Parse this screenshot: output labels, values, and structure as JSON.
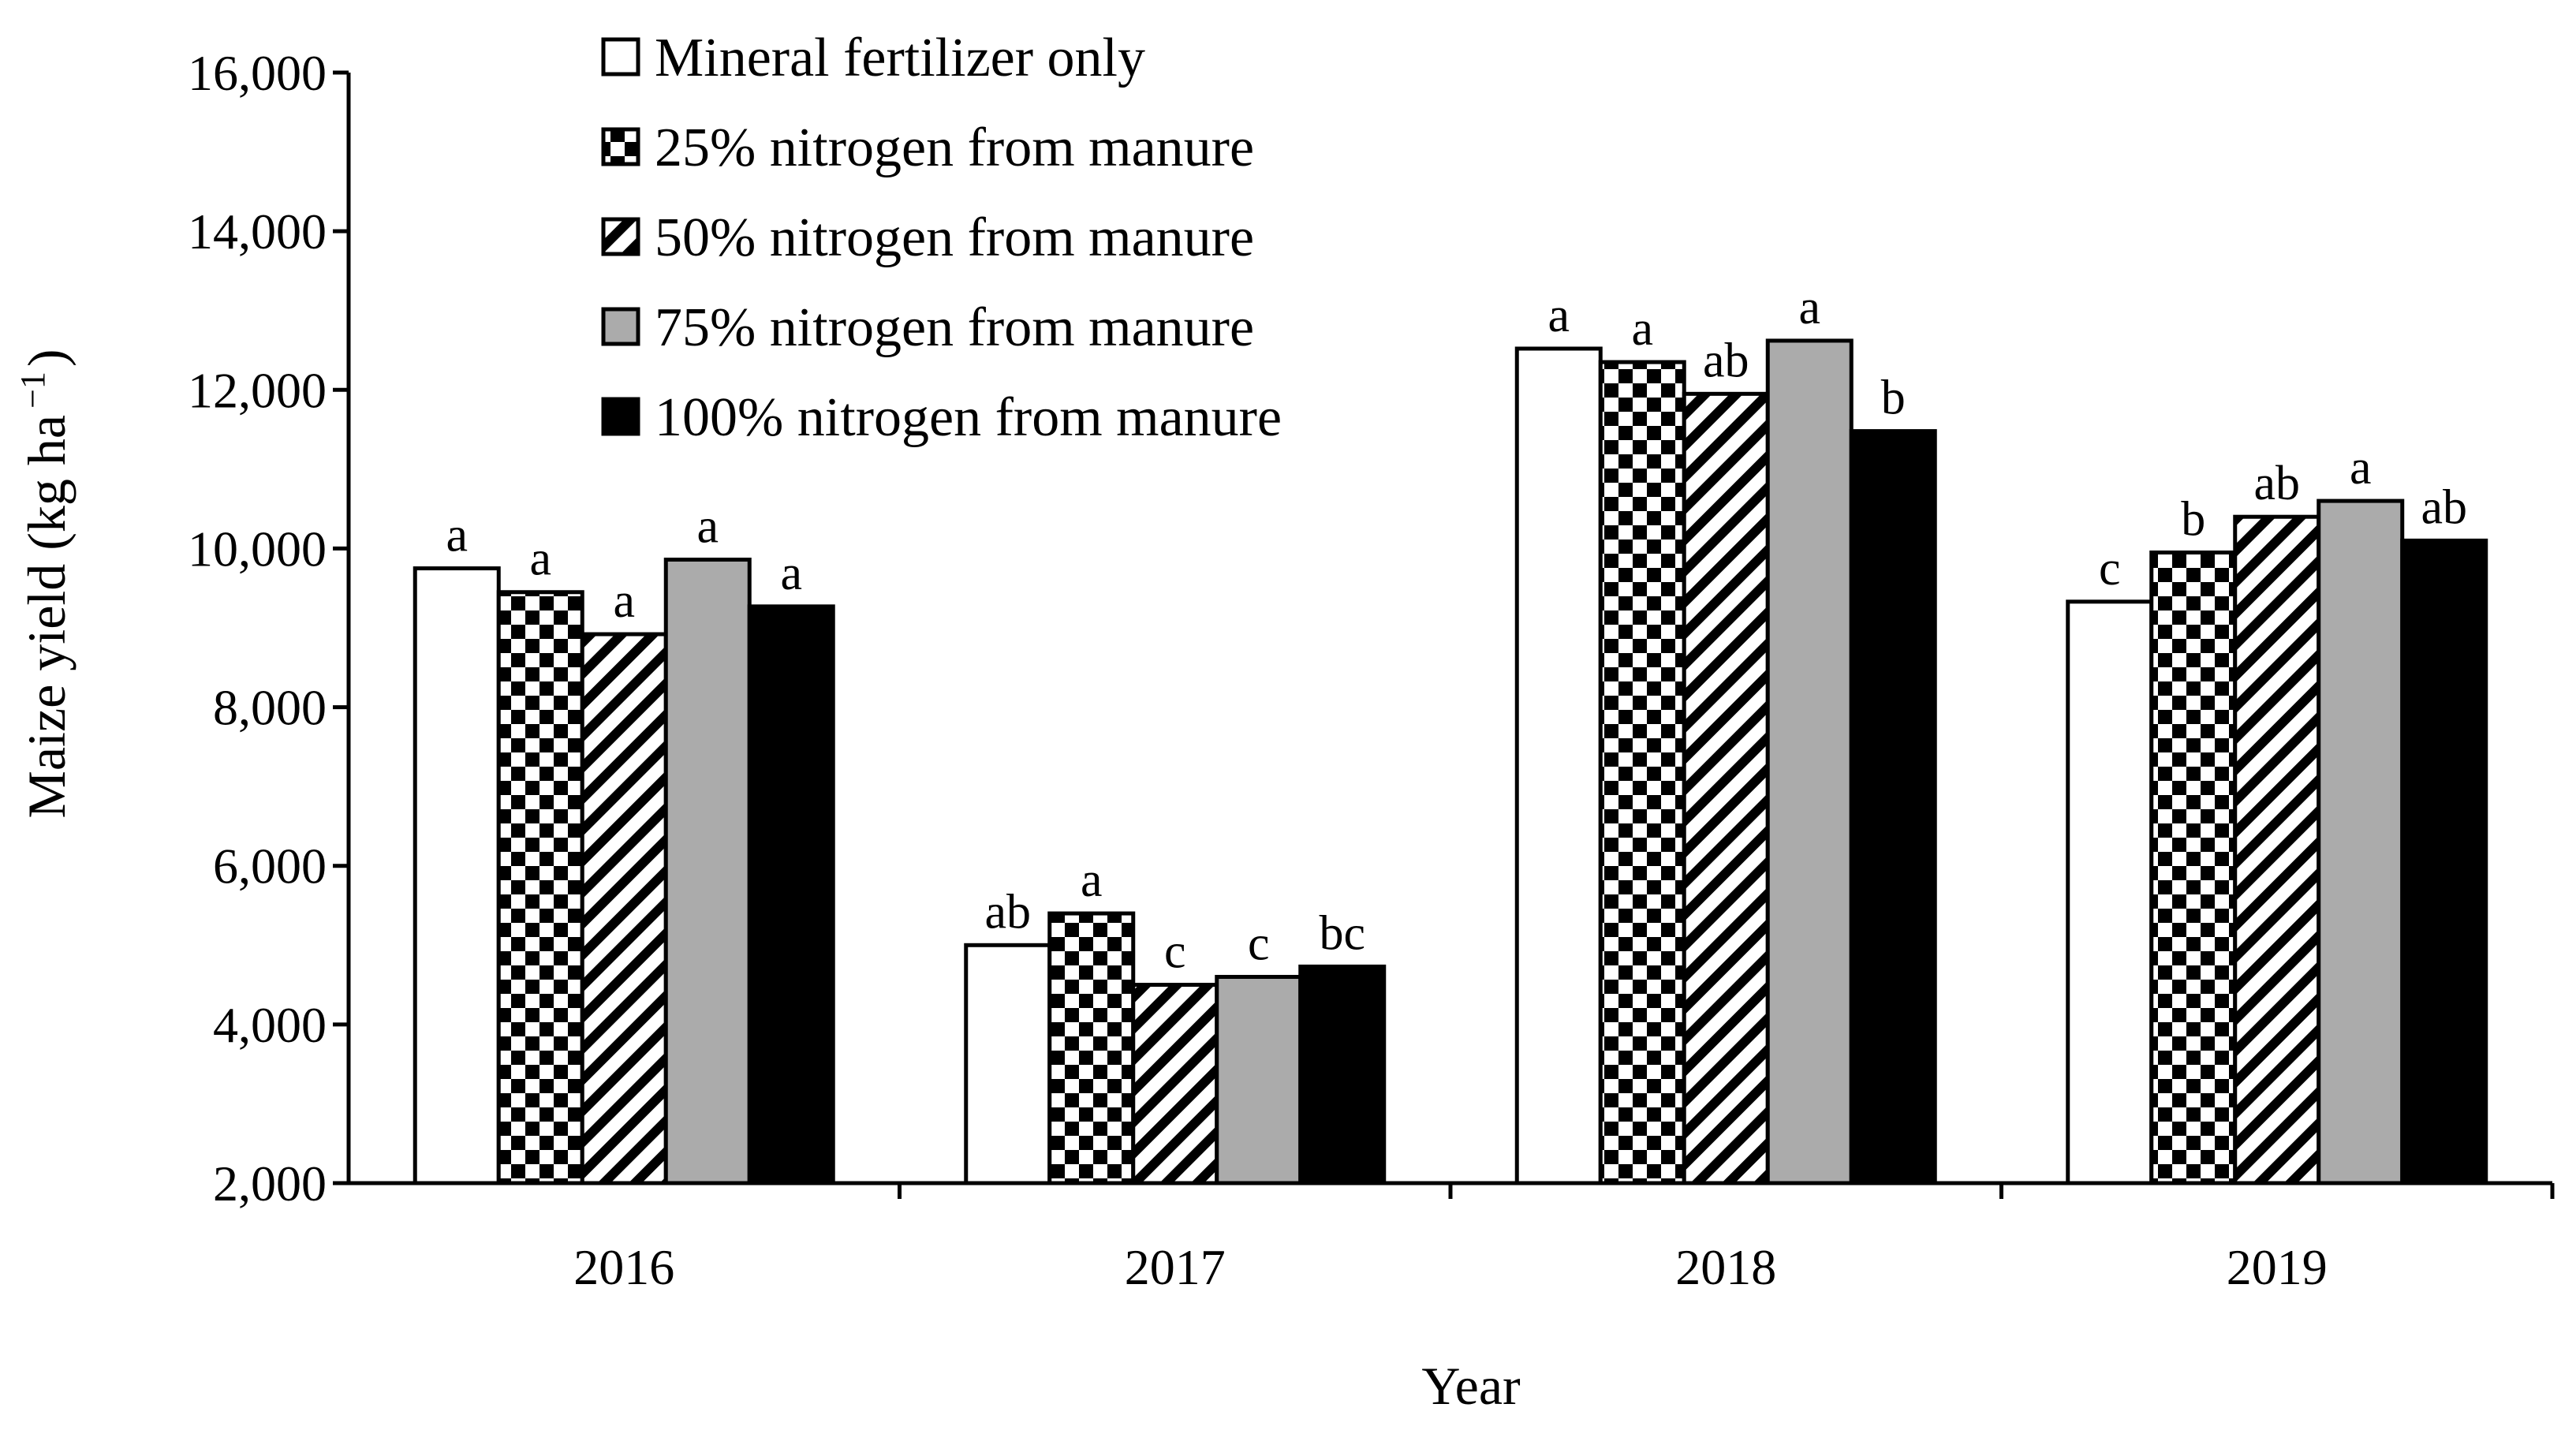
{
  "chart_data": {
    "type": "bar",
    "title": "",
    "xlabel": "Year",
    "ylabel_main": "Maize yield (kg ha",
    "ylabel_sup": "−1",
    "ylabel_close": ")",
    "ylim": [
      2000,
      16000
    ],
    "yticks": [
      2000,
      4000,
      6000,
      8000,
      10000,
      12000,
      14000,
      16000
    ],
    "ytick_labels": [
      "2,000",
      "4,000",
      "6,000",
      "8,000",
      "10,000",
      "12,000",
      "14,000",
      "16,000"
    ],
    "categories": [
      "2016",
      "2017",
      "2018",
      "2019"
    ],
    "legend_position": "top-left",
    "series": [
      {
        "name": "Mineral fertilizer only",
        "pattern": "white",
        "values": [
          9750,
          5000,
          12520,
          9330
        ],
        "labels": [
          "a",
          "ab",
          "a",
          "c"
        ]
      },
      {
        "name": "25% nitrogen from manure",
        "pattern": "checker",
        "values": [
          9450,
          5400,
          12350,
          9950
        ],
        "labels": [
          "a",
          "a",
          "a",
          "b"
        ]
      },
      {
        "name": "50% nitrogen from manure",
        "pattern": "diagonal",
        "values": [
          8920,
          4500,
          11950,
          10400
        ],
        "labels": [
          "a",
          "c",
          "ab",
          "ab"
        ]
      },
      {
        "name": "75% nitrogen from manure",
        "pattern": "gray",
        "values": [
          9860,
          4600,
          12620,
          10600
        ],
        "labels": [
          "a",
          "c",
          "a",
          "a"
        ]
      },
      {
        "name": "100% nitrogen from manure",
        "pattern": "black",
        "values": [
          9270,
          4730,
          11480,
          10100
        ],
        "labels": [
          "a",
          "bc",
          "b",
          "ab"
        ]
      }
    ],
    "colors": {
      "gray": "#ababab",
      "black": "#000000",
      "white": "#ffffff"
    }
  }
}
